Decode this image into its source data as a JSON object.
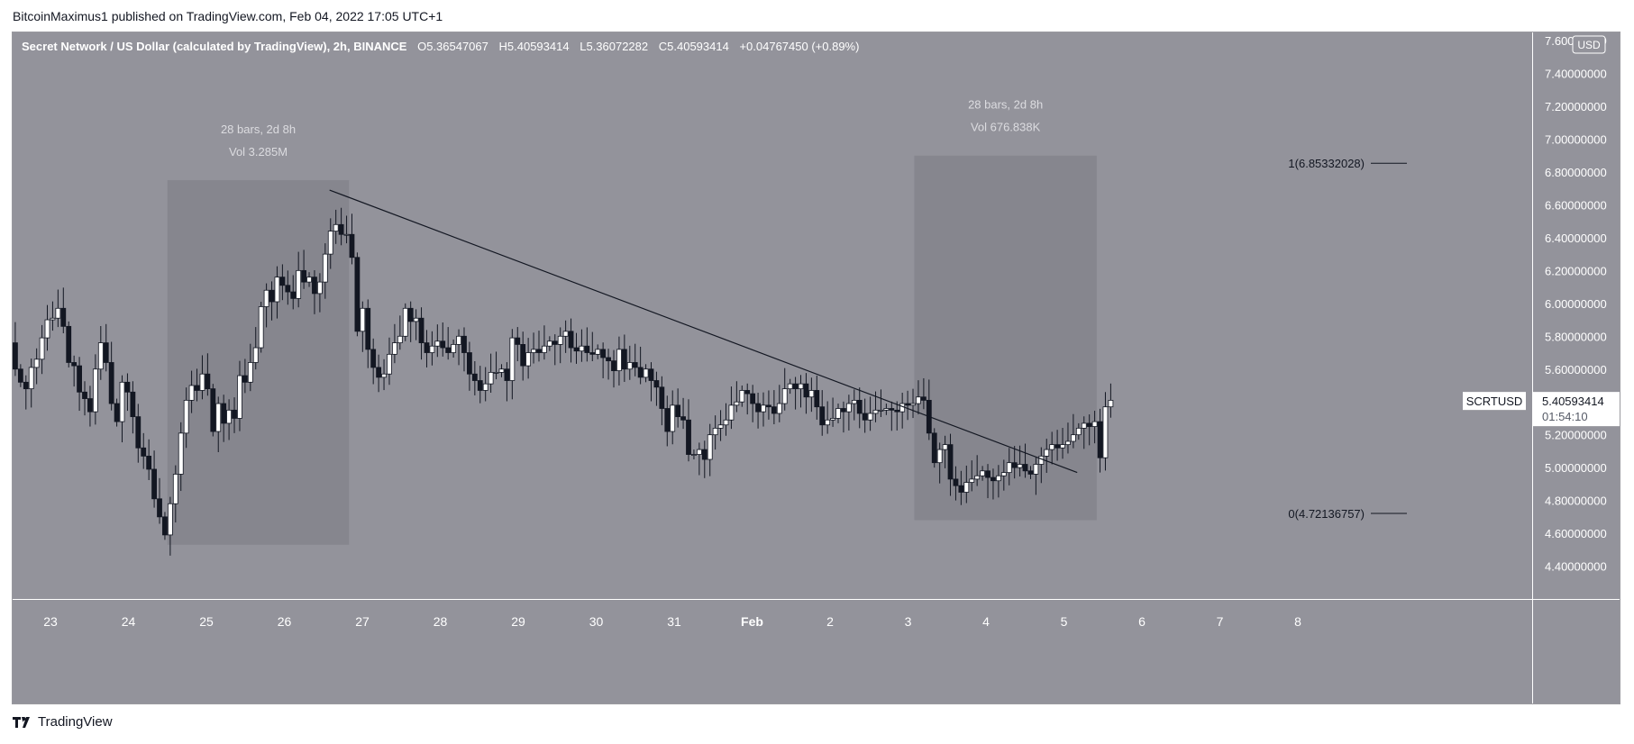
{
  "header": {
    "published": "BitcoinMaximus1 published on TradingView.com, Feb 04, 2022 17:05 UTC+1"
  },
  "legend": {
    "title": "Secret Network / US Dollar (calculated by TradingView), 2h, BINANCE",
    "o_label": "O",
    "o": "5.36547067",
    "h_label": "H",
    "h": "5.40593414",
    "l_label": "L",
    "l": "5.36072282",
    "c_label": "C",
    "c": "5.40593414",
    "change": "+0.04767450 (+0.89%)"
  },
  "footer": {
    "brand": "TradingView"
  },
  "colors": {
    "background": "#93939b",
    "box": "#86868e",
    "up_candle": "#ffffff",
    "down_candle": "#131722",
    "text_light": "#dcdce0"
  },
  "chart_data": {
    "type": "candlestick",
    "symbol": "SCRTUSD",
    "currency": "USD",
    "last_price": "5.40593414",
    "countdown": "01:54:10",
    "ylim": [
      4.2,
      7.65
    ],
    "y_ticks": [
      "7.60000000",
      "7.40000000",
      "7.20000000",
      "7.00000000",
      "6.80000000",
      "6.60000000",
      "6.40000000",
      "6.20000000",
      "6.00000000",
      "5.80000000",
      "5.60000000",
      "5.40000000",
      "5.20000000",
      "5.00000000",
      "4.80000000",
      "4.60000000",
      "4.40000000"
    ],
    "x_ticks": [
      "23",
      "24",
      "25",
      "26",
      "27",
      "28",
      "29",
      "30",
      "31",
      "Feb",
      "2",
      "3",
      "4",
      "5",
      "6",
      "7",
      "8"
    ],
    "date_ranges": [
      {
        "bars_label": "28 bars, 2d 8h",
        "vol_label": "Vol 3.285M",
        "start_day": 24.5,
        "end_day": 26.83,
        "high": 6.75,
        "low": 4.53
      },
      {
        "bars_label": "28 bars, 2d 8h",
        "vol_label": "Vol 676.838K",
        "start_day": 34.08,
        "end_day": 36.42,
        "high": 6.9,
        "low": 4.68
      }
    ],
    "trendline": {
      "start_day": 26.58,
      "start_price": 6.69,
      "end_day": 36.17,
      "end_price": 4.97
    },
    "fibonacci": [
      {
        "label": "1(6.85332028)",
        "price": 6.85332028
      },
      {
        "label": "0(4.72136757)",
        "price": 4.72136757
      }
    ],
    "closes": [
      5.74,
      5.56,
      5.46,
      5.4,
      5.54,
      5.49,
      5.57,
      5.76,
      5.6,
      5.52,
      5.48,
      5.61,
      5.66,
      5.79,
      5.9,
      5.91,
      5.97,
      5.86,
      5.64,
      5.62,
      5.46,
      5.42,
      5.34,
      5.6,
      5.76,
      5.64,
      5.39,
      5.28,
      5.52,
      5.46,
      5.31,
      5.12,
      5.07,
      4.99,
      4.81,
      4.7,
      4.59,
      4.78,
      4.96,
      5.21,
      5.41,
      5.5,
      5.47,
      5.57,
      5.48,
      5.22,
      5.39,
      5.27,
      5.35,
      5.3,
      5.56,
      5.52,
      5.64,
      5.73,
      5.98,
      6.08,
      6.01,
      6.16,
      6.11,
      6.07,
      6.03,
      6.2,
      6.13,
      6.16,
      6.06,
      6.13,
      6.3,
      6.44,
      6.48,
      6.42,
      6.42,
      6.28,
      5.83,
      5.97,
      5.72,
      5.61,
      5.55,
      5.57,
      5.69,
      5.76,
      5.8,
      5.97,
      5.89,
      5.91,
      5.76,
      5.7,
      5.74,
      5.77,
      5.73,
      5.7,
      5.75,
      5.8,
      5.7,
      5.57,
      5.53,
      5.47,
      5.51,
      5.58,
      5.58,
      5.6,
      5.53,
      5.79,
      5.75,
      5.62,
      5.7,
      5.72,
      5.7,
      5.74,
      5.77,
      5.75,
      5.8,
      5.83,
      5.73,
      5.71,
      5.74,
      5.7,
      5.69,
      5.72,
      5.67,
      5.65,
      5.59,
      5.72,
      5.6,
      5.64,
      5.61,
      5.55,
      5.6,
      5.53,
      5.49,
      5.36,
      5.22,
      5.38,
      5.31,
      5.29,
      5.08,
      5.08,
      5.11,
      5.05,
      5.2,
      5.24,
      5.26,
      5.29,
      5.38,
      5.4,
      5.47,
      5.45,
      5.39,
      5.34,
      5.38,
      5.37,
      5.33,
      5.39,
      5.48,
      5.51,
      5.48,
      5.51,
      5.43,
      5.47,
      5.37,
      5.26,
      5.29,
      5.3,
      5.36,
      5.34,
      5.39,
      5.41,
      5.33,
      5.29,
      5.33,
      5.35,
      5.35,
      5.36,
      5.35,
      5.34,
      5.39,
      5.38,
      5.39,
      5.43,
      5.41,
      5.21,
      5.03,
      5.11,
      5.14,
      4.93,
      4.89,
      4.85,
      4.91,
      4.93,
      4.95,
      4.98,
      4.94,
      4.92,
      4.95,
      4.97,
      5.03,
      5.0,
      5.02,
      4.98,
      4.96,
      5.02,
      5.07,
      5.11,
      5.14,
      5.12,
      5.14,
      5.16,
      5.2,
      5.24,
      5.27,
      5.25,
      5.28,
      5.06,
      5.37,
      5.41
    ]
  }
}
